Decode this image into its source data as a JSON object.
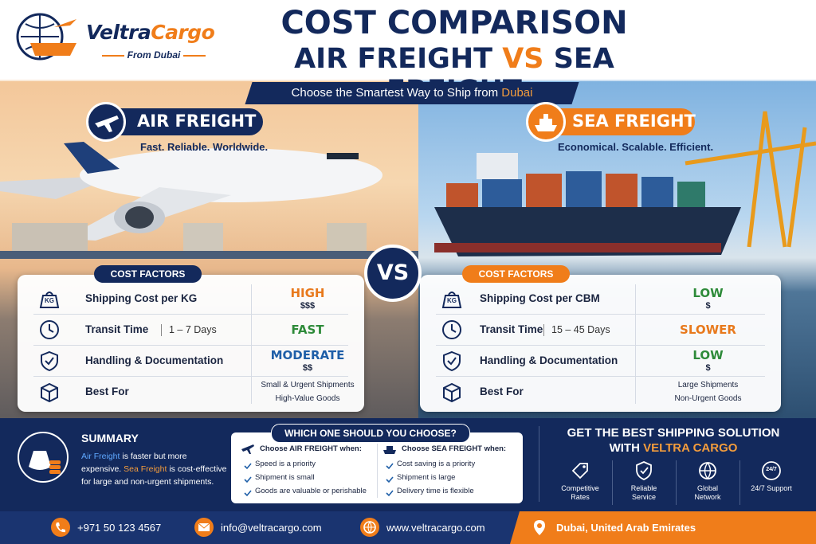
{
  "brand": {
    "name_1": "Veltra",
    "name_2": "Cargo",
    "tagline": "From Dubai"
  },
  "header": {
    "title_1": "COST COMPARISON",
    "title_2a": "AIR FREIGHT",
    "title_2b": "VS",
    "title_2c": "SEA FREIGHT",
    "subtitle": "Choose the Smartest Way to Ship from",
    "subtitle_place": "Dubai"
  },
  "vs": "VS",
  "air": {
    "label": "AIR FREIGHT",
    "tagline": "Fast. Reliable. Worldwide.",
    "factors_title": "COST FACTORS",
    "icon_text": "KG",
    "rows": [
      {
        "factor": "Shipping Cost per KG",
        "rating": "HIGH",
        "color": "#e8791c",
        "detail": "$$$"
      },
      {
        "factor": "Transit Time",
        "note": "1 – 7 Days",
        "rating": "FAST",
        "color": "#2e8b3a"
      },
      {
        "factor": "Handling & Documentation",
        "rating": "MODERATE",
        "color": "#1f5fa8",
        "detail": "$$"
      },
      {
        "factor": "Best For",
        "lines": [
          "Small & Urgent Shipments",
          "High-Value Goods"
        ]
      }
    ]
  },
  "sea": {
    "label": "SEA FREIGHT",
    "tagline": "Economical. Scalable. Efficient.",
    "factors_title": "COST FACTORS",
    "icon_text": "KG",
    "rows": [
      {
        "factor": "Shipping Cost per CBM",
        "rating": "LOW",
        "color": "#2e8b3a",
        "detail": "$"
      },
      {
        "factor": "Transit Time",
        "note": "15 – 45 Days",
        "rating": "SLOWER",
        "color": "#e8791c"
      },
      {
        "factor": "Handling & Documentation",
        "rating": "LOW",
        "color": "#2e8b3a",
        "detail": "$"
      },
      {
        "factor": "Best For",
        "lines": [
          "Large Shipments",
          "Non-Urgent Goods"
        ]
      }
    ]
  },
  "summary": {
    "title": "SUMMARY",
    "air": "Air Freight",
    "air_text": "is faster but more expensive.",
    "sea": "Sea Freight",
    "sea_text": "is cost-effective for large and non-urgent shipments."
  },
  "choose": {
    "title": "WHICH ONE SHOULD YOU CHOOSE?",
    "air": {
      "heading": "Choose AIR FREIGHT when:",
      "items": [
        "Speed is a priority",
        "Shipment is small",
        "Goods are valuable or perishable"
      ]
    },
    "sea": {
      "heading": "Choose SEA FREIGHT when:",
      "items": [
        "Cost saving is a priority",
        "Shipment is large",
        "Delivery time is flexible"
      ]
    }
  },
  "cta": {
    "title_1": "GET THE BEST SHIPPING SOLUTION",
    "title_2a": "WITH",
    "title_2b": "VELTRA CARGO",
    "icon_247": "24/7",
    "features": [
      "Competitive Rates",
      "Reliable Service",
      "Global Network",
      "24/7 Support"
    ]
  },
  "footer": {
    "phone": "+971 50 123 4567",
    "email": "info@veltracargo.com",
    "web": "www.veltracargo.com",
    "location": "Dubai, United Arab Emirates"
  }
}
